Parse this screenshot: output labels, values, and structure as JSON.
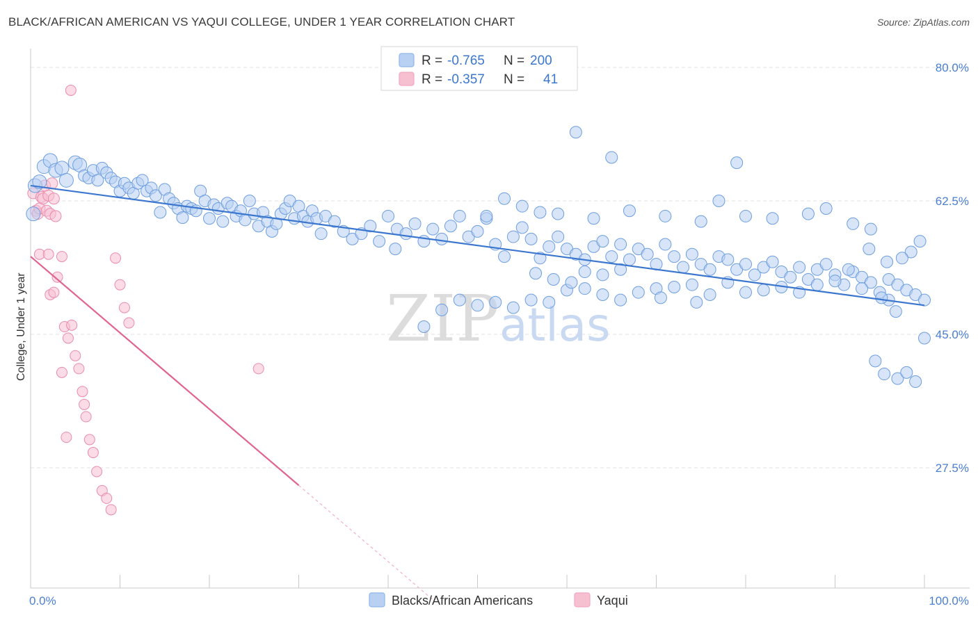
{
  "header": {
    "title": "BLACK/AFRICAN AMERICAN VS YAQUI COLLEGE, UNDER 1 YEAR CORRELATION CHART",
    "source": "Source: ZipAtlas.com"
  },
  "legend_top": {
    "rows": [
      {
        "r_label": "R =",
        "r_value": "-0.765",
        "n_label": "N =",
        "n_value": "200",
        "color": "#8fb6ea"
      },
      {
        "r_label": "R =",
        "r_value": "-0.357",
        "n_label": "N =",
        "n_value": "41",
        "color": "#f2a7c0"
      }
    ]
  },
  "watermark": {
    "zip": "ZIP",
    "atlas": "atlas"
  },
  "chart_data": {
    "type": "scatter",
    "title": "BLACK/AFRICAN AMERICAN VS YAQUI COLLEGE, UNDER 1 YEAR CORRELATION CHART",
    "xlabel": "",
    "ylabel": "College, Under 1 year",
    "xlim": [
      0,
      100
    ],
    "ylim": [
      12,
      82
    ],
    "x_tick_labels": [
      "0.0%",
      "100.0%"
    ],
    "y_ticks": [
      27.5,
      45.0,
      62.5,
      80.0
    ],
    "y_tick_labels": [
      "27.5%",
      "45.0%",
      "62.5%",
      "80.0%"
    ],
    "grid": "horizontal dashed",
    "legend_position": "top-center",
    "colors": {
      "blue": "#3b76cf",
      "blue_fill": "#b8d0f2",
      "pink": "#e0648f",
      "pink_fill": "#f7c0d1"
    },
    "series": [
      {
        "name": "Blacks/African Americans",
        "color": "#3b76cf",
        "trend": {
          "x": [
            0,
            100
          ],
          "y": [
            64.5,
            48.8
          ]
        },
        "points": [
          [
            0.3,
            60.8
          ],
          [
            0.5,
            64.5
          ],
          [
            1,
            65
          ],
          [
            1.5,
            67
          ],
          [
            2.2,
            67.8
          ],
          [
            2.8,
            66.5
          ],
          [
            3.5,
            66.8
          ],
          [
            4,
            65.2
          ],
          [
            5,
            67.5
          ],
          [
            5.5,
            67.2
          ],
          [
            6,
            65.8
          ],
          [
            6.5,
            65.5
          ],
          [
            7,
            66.5
          ],
          [
            7.5,
            65.2
          ],
          [
            8,
            66.8
          ],
          [
            8.5,
            66.2
          ],
          [
            9,
            65.5
          ],
          [
            9.5,
            65
          ],
          [
            10,
            63.8
          ],
          [
            10.5,
            64.8
          ],
          [
            11,
            64.2
          ],
          [
            11.5,
            63.5
          ],
          [
            12,
            64.8
          ],
          [
            12.5,
            65.2
          ],
          [
            13,
            63.8
          ],
          [
            13.5,
            64.2
          ],
          [
            14,
            63.2
          ],
          [
            14.5,
            61
          ],
          [
            15,
            64
          ],
          [
            15.5,
            62.8
          ],
          [
            16,
            62.2
          ],
          [
            16.5,
            61.5
          ],
          [
            17,
            60.3
          ],
          [
            17.5,
            61.8
          ],
          [
            18,
            61.5
          ],
          [
            18.5,
            61.2
          ],
          [
            19,
            63.8
          ],
          [
            19.5,
            62.5
          ],
          [
            20,
            60.2
          ],
          [
            20.5,
            62
          ],
          [
            21,
            61.5
          ],
          [
            21.5,
            59.8
          ],
          [
            22,
            62.2
          ],
          [
            22.5,
            61.8
          ],
          [
            23,
            60.5
          ],
          [
            23.5,
            61.2
          ],
          [
            24,
            60
          ],
          [
            24.5,
            62.5
          ],
          [
            25,
            60.8
          ],
          [
            25.5,
            59.2
          ],
          [
            26,
            61
          ],
          [
            26.5,
            59.8
          ],
          [
            27,
            58.5
          ],
          [
            27.5,
            59.5
          ],
          [
            28,
            60.8
          ],
          [
            28.5,
            61.5
          ],
          [
            29,
            62.5
          ],
          [
            29.5,
            60.2
          ],
          [
            30,
            61.8
          ],
          [
            30.5,
            60.5
          ],
          [
            31,
            59.8
          ],
          [
            31.5,
            61.2
          ],
          [
            32,
            60.2
          ],
          [
            32.5,
            58.2
          ],
          [
            33,
            60.5
          ],
          [
            34,
            59.8
          ],
          [
            35,
            58.5
          ],
          [
            36,
            57.5
          ],
          [
            37,
            58.2
          ],
          [
            38,
            59.2
          ],
          [
            39,
            57.2
          ],
          [
            40,
            60.5
          ],
          [
            40.8,
            56.2
          ],
          [
            41,
            58.8
          ],
          [
            42,
            58.2
          ],
          [
            43,
            59.5
          ],
          [
            44,
            57.2
          ],
          [
            45,
            58.8
          ],
          [
            46,
            57.5
          ],
          [
            47,
            59.2
          ],
          [
            48,
            60.5
          ],
          [
            49,
            57.8
          ],
          [
            50,
            58.5
          ],
          [
            51,
            60.2
          ],
          [
            52,
            56.8
          ],
          [
            53,
            55.2
          ],
          [
            54,
            57.8
          ],
          [
            55,
            59
          ],
          [
            56,
            57.5
          ],
          [
            57,
            55
          ],
          [
            58,
            56.5
          ],
          [
            59,
            57.8
          ],
          [
            60,
            56.2
          ],
          [
            61,
            55.5
          ],
          [
            62,
            54.8
          ],
          [
            63,
            56.5
          ],
          [
            64,
            57.2
          ],
          [
            65,
            55.2
          ],
          [
            66,
            56.8
          ],
          [
            67,
            54.8
          ],
          [
            68,
            56.2
          ],
          [
            69,
            55.5
          ],
          [
            70,
            54.2
          ],
          [
            71,
            56.8
          ],
          [
            72,
            55.2
          ],
          [
            73,
            53.8
          ],
          [
            74,
            55.5
          ],
          [
            75,
            54.2
          ],
          [
            76,
            53.5
          ],
          [
            77,
            55.2
          ],
          [
            78,
            54.8
          ],
          [
            79,
            53.5
          ],
          [
            80,
            54.2
          ],
          [
            81,
            52.8
          ],
          [
            82,
            53.8
          ],
          [
            83,
            54.5
          ],
          [
            84,
            53.2
          ],
          [
            85,
            52.5
          ],
          [
            86,
            53.8
          ],
          [
            87,
            52.2
          ],
          [
            88,
            53.5
          ],
          [
            89,
            54.2
          ],
          [
            90,
            52.8
          ],
          [
            91,
            51.5
          ],
          [
            92,
            53.2
          ],
          [
            93,
            52.5
          ],
          [
            94,
            51.8
          ],
          [
            95,
            50.5
          ],
          [
            96,
            52.2
          ],
          [
            97,
            51.5
          ],
          [
            98,
            50.8
          ],
          [
            99,
            50.2
          ],
          [
            100,
            49.5
          ],
          [
            61,
            71.5
          ],
          [
            79,
            67.5
          ],
          [
            65,
            68.2
          ],
          [
            80,
            60.5
          ],
          [
            96,
            49.5
          ],
          [
            94.5,
            41.5
          ],
          [
            95.5,
            39.8
          ],
          [
            97,
            39.2
          ],
          [
            98,
            40
          ],
          [
            99,
            38.8
          ],
          [
            100,
            44.5
          ],
          [
            96.8,
            48
          ],
          [
            95.2,
            49.8
          ],
          [
            93,
            51
          ],
          [
            91.5,
            53.5
          ],
          [
            90,
            52
          ],
          [
            88,
            51.5
          ],
          [
            86,
            50.5
          ],
          [
            84,
            51.2
          ],
          [
            82,
            50.8
          ],
          [
            80,
            50.5
          ],
          [
            78,
            51.8
          ],
          [
            76,
            50.2
          ],
          [
            74,
            51.5
          ],
          [
            72,
            51.2
          ],
          [
            70,
            51
          ],
          [
            68,
            50.5
          ],
          [
            66,
            49.5
          ],
          [
            64,
            50.2
          ],
          [
            62,
            51
          ],
          [
            60,
            50.8
          ],
          [
            58,
            49.2
          ],
          [
            56,
            49.5
          ],
          [
            54,
            48.5
          ],
          [
            52,
            49.2
          ],
          [
            50,
            48.8
          ],
          [
            48,
            49.5
          ],
          [
            46,
            48.2
          ],
          [
            44,
            46
          ],
          [
            62,
            53.2
          ],
          [
            64,
            52.8
          ],
          [
            66,
            53.5
          ],
          [
            56.5,
            53
          ],
          [
            58.5,
            52.2
          ],
          [
            60.5,
            51.8
          ],
          [
            70.5,
            49.8
          ],
          [
            74.5,
            49.2
          ],
          [
            55,
            61.8
          ],
          [
            53,
            62.8
          ],
          [
            51,
            60.5
          ],
          [
            57,
            61
          ],
          [
            59,
            60.8
          ],
          [
            63,
            60.2
          ],
          [
            67,
            61.2
          ],
          [
            71,
            60.5
          ],
          [
            75,
            59.8
          ],
          [
            77,
            62.5
          ],
          [
            83,
            60.2
          ],
          [
            87,
            60.8
          ],
          [
            89,
            61.5
          ],
          [
            92,
            59.5
          ],
          [
            94,
            58.8
          ],
          [
            98.5,
            55.8
          ],
          [
            99.5,
            57.2
          ],
          [
            97.5,
            55
          ],
          [
            95.8,
            54.5
          ],
          [
            93.8,
            56.2
          ]
        ]
      },
      {
        "name": "Yaqui",
        "color": "#e0648f",
        "trend": {
          "x": [
            0,
            30
          ],
          "y": [
            55.2,
            25.2
          ]
        },
        "trend_dashed": {
          "x": [
            30,
            45
          ],
          "y": [
            25.2,
            10.2
          ]
        },
        "points": [
          [
            0.3,
            63.5
          ],
          [
            0.6,
            61.2
          ],
          [
            0.8,
            60.8
          ],
          [
            1,
            61.5
          ],
          [
            1.2,
            63
          ],
          [
            1.4,
            62.8
          ],
          [
            1.6,
            64.5
          ],
          [
            1.8,
            61.2
          ],
          [
            2,
            63.2
          ],
          [
            2.2,
            60.8
          ],
          [
            2.4,
            64.8
          ],
          [
            2.6,
            62.8
          ],
          [
            2.8,
            60.5
          ],
          [
            1,
            55.5
          ],
          [
            2,
            55.5
          ],
          [
            2.2,
            50.2
          ],
          [
            2.6,
            50.5
          ],
          [
            3,
            52.5
          ],
          [
            3.5,
            55.2
          ],
          [
            3.8,
            46
          ],
          [
            4.2,
            44.5
          ],
          [
            4.6,
            46.2
          ],
          [
            5,
            42.2
          ],
          [
            5.4,
            40.5
          ],
          [
            5.8,
            37.5
          ],
          [
            6.2,
            34.2
          ],
          [
            6.6,
            31.2
          ],
          [
            7,
            29.5
          ],
          [
            7.4,
            27
          ],
          [
            8,
            24.5
          ],
          [
            8.5,
            23.5
          ],
          [
            9,
            22
          ],
          [
            9.5,
            55
          ],
          [
            10,
            51.5
          ],
          [
            10.5,
            48.5
          ],
          [
            11,
            46.5
          ],
          [
            3.5,
            40
          ],
          [
            4,
            31.5
          ],
          [
            6,
            35.8
          ],
          [
            25.5,
            40.5
          ],
          [
            4.5,
            77
          ]
        ]
      }
    ]
  },
  "bottom_legend": {
    "items": [
      {
        "label": "Blacks/African Americans",
        "color": "#8fb6ea"
      },
      {
        "label": "Yaqui",
        "color": "#f2a7c0"
      }
    ]
  }
}
